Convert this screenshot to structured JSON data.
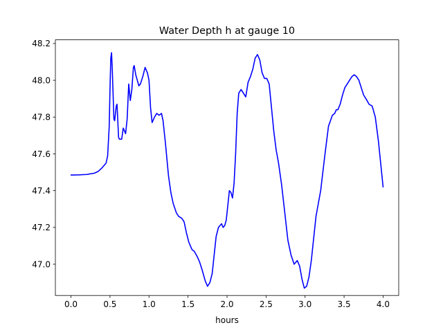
{
  "chart_data": {
    "type": "line",
    "title": "Water Depth h at gauge 10",
    "xlabel": "hours",
    "ylabel": "",
    "xlim": [
      -0.2,
      4.2
    ],
    "ylim": [
      46.83,
      48.22
    ],
    "xticks": [
      0.0,
      0.5,
      1.0,
      1.5,
      2.0,
      2.5,
      3.0,
      3.5,
      4.0
    ],
    "xtick_labels": [
      "0.0",
      "0.5",
      "1.0",
      "1.5",
      "2.0",
      "2.5",
      "3.0",
      "3.5",
      "4.0"
    ],
    "yticks": [
      47.0,
      47.2,
      47.4,
      47.6,
      47.8,
      48.0,
      48.2
    ],
    "ytick_labels": [
      "47.0",
      "47.2",
      "47.4",
      "47.6",
      "47.8",
      "48.0",
      "48.2"
    ],
    "grid": false,
    "legend": "none",
    "series": [
      {
        "color": "#0000ff",
        "x": [
          0.0,
          0.1,
          0.2,
          0.3,
          0.35,
          0.4,
          0.45,
          0.47,
          0.49,
          0.5,
          0.51,
          0.52,
          0.53,
          0.55,
          0.56,
          0.58,
          0.59,
          0.61,
          0.62,
          0.65,
          0.67,
          0.7,
          0.72,
          0.74,
          0.76,
          0.78,
          0.8,
          0.81,
          0.83,
          0.85,
          0.87,
          0.89,
          0.92,
          0.95,
          0.98,
          1.0,
          1.02,
          1.04,
          1.07,
          1.1,
          1.13,
          1.16,
          1.18,
          1.21,
          1.23,
          1.25,
          1.28,
          1.31,
          1.35,
          1.38,
          1.42,
          1.45,
          1.48,
          1.51,
          1.55,
          1.58,
          1.62,
          1.65,
          1.68,
          1.72,
          1.75,
          1.78,
          1.81,
          1.84,
          1.86,
          1.89,
          1.91,
          1.93,
          1.95,
          1.97,
          1.99,
          2.01,
          2.03,
          2.05,
          2.07,
          2.09,
          2.11,
          2.13,
          2.15,
          2.18,
          2.21,
          2.24,
          2.27,
          2.3,
          2.33,
          2.36,
          2.39,
          2.42,
          2.45,
          2.48,
          2.51,
          2.54,
          2.57,
          2.6,
          2.63,
          2.66,
          2.7,
          2.74,
          2.78,
          2.82,
          2.86,
          2.9,
          2.93,
          2.96,
          2.99,
          3.02,
          3.05,
          3.08,
          3.11,
          3.14,
          3.17,
          3.2,
          3.25,
          3.3,
          3.35,
          3.38,
          3.4,
          3.42,
          3.45,
          3.48,
          3.51,
          3.54,
          3.57,
          3.6,
          3.63,
          3.66,
          3.69,
          3.72,
          3.75,
          3.78,
          3.82,
          3.86,
          3.9,
          3.94,
          4.0
        ],
        "y": [
          47.485,
          47.486,
          47.488,
          47.495,
          47.505,
          47.525,
          47.55,
          47.59,
          47.75,
          47.95,
          48.12,
          48.15,
          48.05,
          47.79,
          47.78,
          47.86,
          47.87,
          47.69,
          47.68,
          47.68,
          47.74,
          47.71,
          47.79,
          47.98,
          47.89,
          47.95,
          48.07,
          48.08,
          48.03,
          48.0,
          47.97,
          47.98,
          48.02,
          48.07,
          48.04,
          48.0,
          47.85,
          47.77,
          47.8,
          47.82,
          47.81,
          47.82,
          47.78,
          47.66,
          47.57,
          47.48,
          47.39,
          47.33,
          47.28,
          47.26,
          47.25,
          47.23,
          47.17,
          47.12,
          47.08,
          47.07,
          47.04,
          47.01,
          46.97,
          46.91,
          46.88,
          46.9,
          46.95,
          47.07,
          47.15,
          47.2,
          47.21,
          47.22,
          47.2,
          47.21,
          47.24,
          47.32,
          47.4,
          47.39,
          47.36,
          47.44,
          47.6,
          47.82,
          47.93,
          47.95,
          47.93,
          47.91,
          47.99,
          48.02,
          48.06,
          48.12,
          48.14,
          48.11,
          48.04,
          48.01,
          48.01,
          47.98,
          47.85,
          47.72,
          47.62,
          47.55,
          47.43,
          47.28,
          47.13,
          47.05,
          47.0,
          47.02,
          46.99,
          46.92,
          46.87,
          46.88,
          46.93,
          47.02,
          47.14,
          47.26,
          47.33,
          47.4,
          47.58,
          47.75,
          47.81,
          47.82,
          47.84,
          47.84,
          47.87,
          47.92,
          47.96,
          47.98,
          48.0,
          48.02,
          48.03,
          48.02,
          48.0,
          47.96,
          47.92,
          47.9,
          47.87,
          47.86,
          47.8,
          47.67,
          47.42
        ]
      }
    ]
  }
}
